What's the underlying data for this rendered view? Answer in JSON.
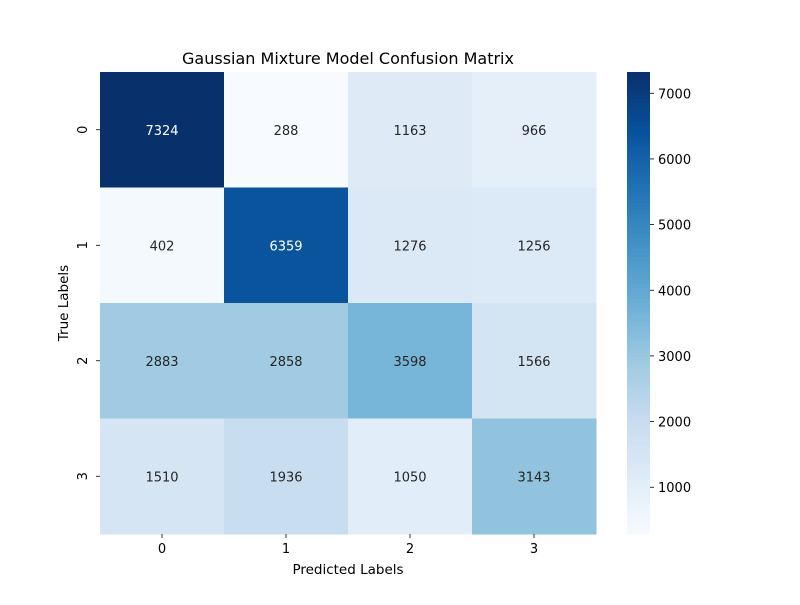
{
  "chart_data": {
    "type": "heatmap",
    "title": "Gaussian Mixture Model Confusion Matrix",
    "xlabel": "Predicted Labels",
    "ylabel": "True Labels",
    "x_categories": [
      "0",
      "1",
      "2",
      "3"
    ],
    "y_categories": [
      "0",
      "1",
      "2",
      "3"
    ],
    "values": [
      [
        7324,
        288,
        1163,
        966
      ],
      [
        402,
        6359,
        1276,
        1256
      ],
      [
        2883,
        2858,
        3598,
        1566
      ],
      [
        1510,
        1936,
        1050,
        3143
      ]
    ],
    "colormap": "Blues",
    "color_range": [
      288,
      7324
    ],
    "colorbar_ticks": [
      1000,
      2000,
      3000,
      4000,
      5000,
      6000,
      7000
    ],
    "colorbar_labels": [
      "1000",
      "2000",
      "3000",
      "4000",
      "5000",
      "6000",
      "7000"
    ],
    "annotation_colors": {
      "dark_text": "#262626",
      "light_text": "#ffffff"
    }
  }
}
